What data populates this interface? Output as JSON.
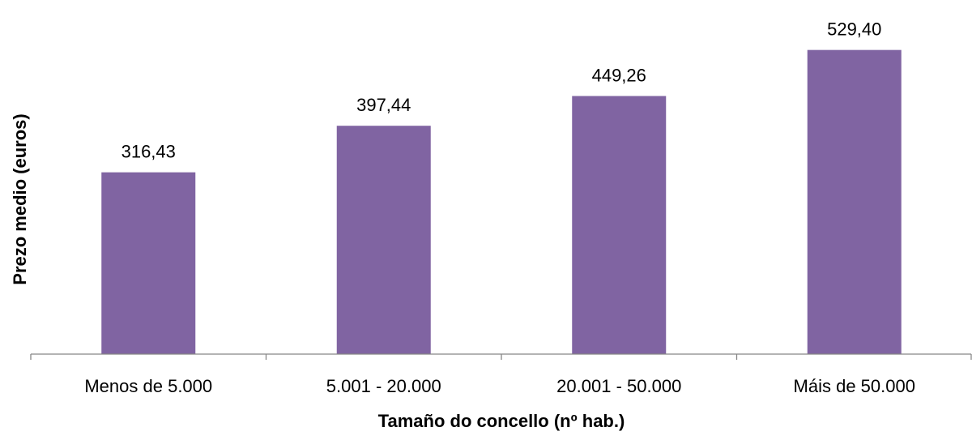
{
  "chart_data": {
    "type": "bar",
    "categories": [
      "Menos de 5.000",
      "5.001 - 20.000",
      "20.001 - 50.000",
      "Máis de 50.000"
    ],
    "values": [
      316.43,
      397.44,
      449.26,
      529.4
    ],
    "value_labels": [
      "316,43",
      "397,44",
      "449,26",
      "529,40"
    ],
    "xlabel": "Tamaño do concello (nº hab.)",
    "ylabel": "Prezo medio (euros)",
    "ylim": [
      0,
      600
    ],
    "grid": false,
    "legend": "none",
    "bar_color": "#8064A2"
  }
}
